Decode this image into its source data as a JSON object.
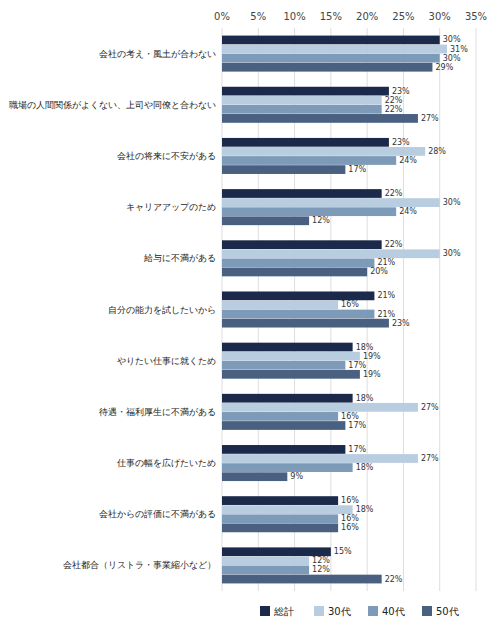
{
  "chart_data": {
    "type": "bar",
    "orientation": "horizontal",
    "categories": [
      "会社の考え・風土が合わない",
      "職場の人間関係がよくない、上司や同僚と合わない",
      "会社の将来に不安がある",
      "キャリアアップのため",
      "給与に不満がある",
      "自分の能力を試したいから",
      "やりたい仕事に就くため",
      "待遇・福利厚生に不満がある",
      "仕事の幅を広げたいため",
      "会社からの評価に不満がある",
      "会社都合（リストラ・事業縮小など）"
    ],
    "series": [
      {
        "name": "総計",
        "color": "#1b2a4a",
        "values": [
          30,
          23,
          23,
          22,
          22,
          21,
          18,
          18,
          17,
          16,
          15
        ],
        "value_labels": [
          "30%",
          "23%",
          "23%",
          "22%",
          "22%",
          "21%",
          "18%",
          "18%",
          "17%",
          "16%",
          "15%"
        ]
      },
      {
        "name": "30代",
        "color": "#b8cde0",
        "values": [
          31,
          22,
          28,
          30,
          30,
          16,
          19,
          27,
          27,
          18,
          12
        ],
        "value_labels": [
          "31%",
          "22%",
          "28%",
          "30%",
          "30%",
          "16%",
          "19%",
          "27%",
          "27%",
          "18%",
          "12%"
        ]
      },
      {
        "name": "40代",
        "color": "#7d9ab8",
        "values": [
          30,
          22,
          24,
          24,
          21,
          21,
          17,
          16,
          18,
          16,
          12
        ],
        "value_labels": [
          "30%",
          "22%",
          "24%",
          "24%",
          "21%",
          "21%",
          "17%",
          "16%",
          "18%",
          "16%",
          "12%"
        ]
      },
      {
        "name": "50代",
        "color": "#4a6080",
        "values": [
          29,
          27,
          17,
          12,
          20,
          23,
          19,
          17,
          9,
          16,
          22
        ],
        "value_labels": [
          "29%",
          "27%",
          "17%",
          "12%",
          "20%",
          "23%",
          "19%",
          "17%",
          "9%",
          "16%",
          "22%"
        ]
      }
    ],
    "xlim": [
      0,
      35
    ],
    "xticks": [
      {
        "value": 0,
        "label": "0%"
      },
      {
        "value": 5,
        "label": "5%"
      },
      {
        "value": 10,
        "label": "10%"
      },
      {
        "value": 15,
        "label": "15%"
      },
      {
        "value": 20,
        "label": "20%"
      },
      {
        "value": 25,
        "label": "25%"
      },
      {
        "value": 30,
        "label": "30%"
      },
      {
        "value": 35,
        "label": "35%"
      }
    ],
    "grid": true,
    "legend": "lower right",
    "data_labels": true
  }
}
